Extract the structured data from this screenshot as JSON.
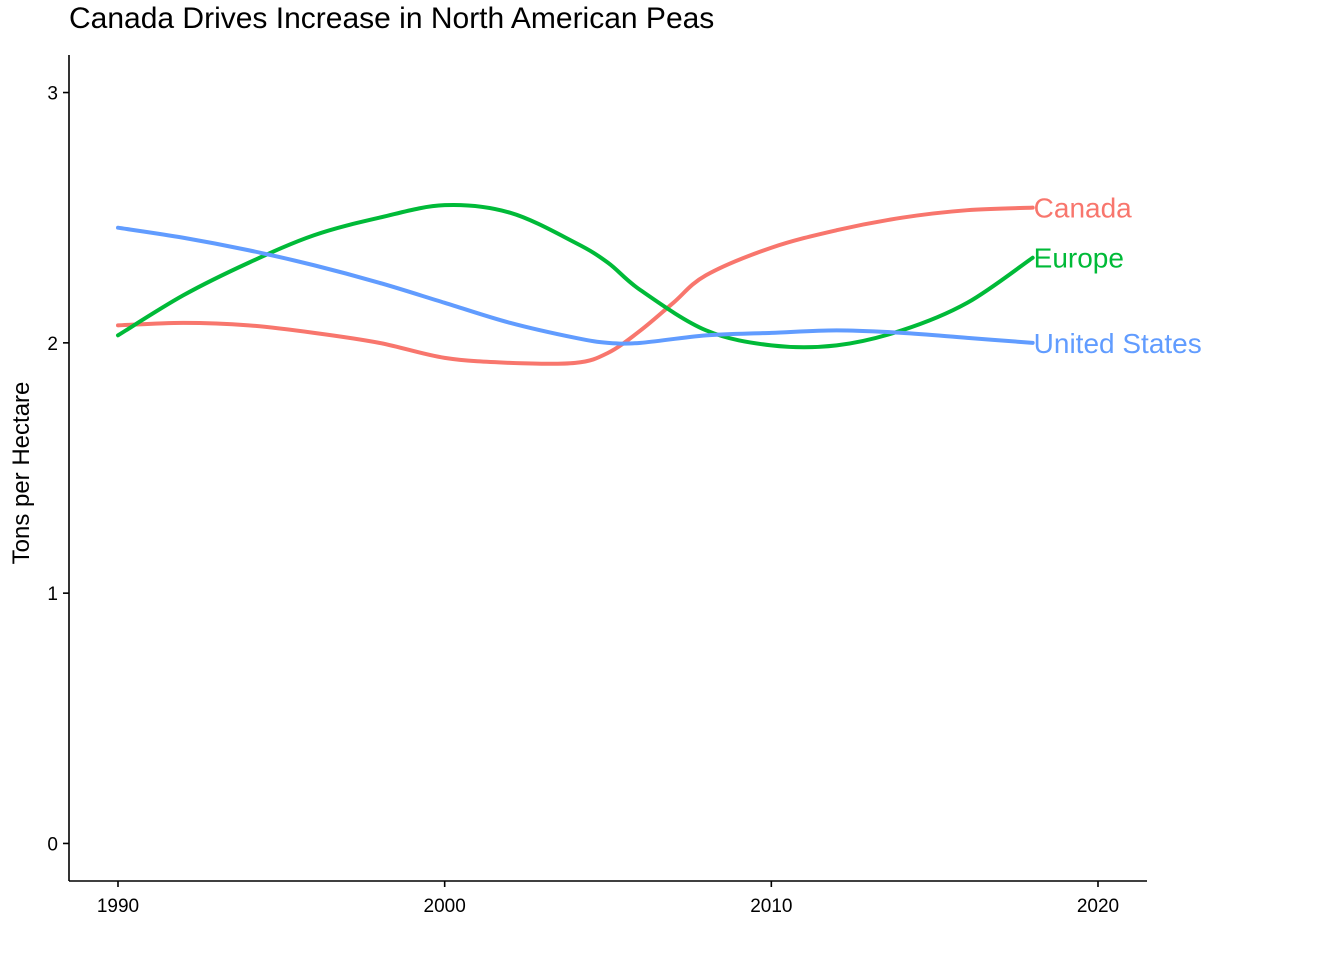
{
  "chart_data": {
    "type": "line",
    "title": "Canada Drives Increase in North American Peas",
    "xlabel": "",
    "ylabel": "Tons per Hectare",
    "xlim": [
      1988.5,
      2021.5
    ],
    "ylim": [
      -0.15,
      3.15
    ],
    "x_ticks": [
      1990,
      2000,
      2010,
      2020
    ],
    "y_ticks": [
      0,
      1,
      2,
      3
    ],
    "grid": false,
    "legend": "none (direct labels at line ends)",
    "series": [
      {
        "name": "Canada",
        "color": "#F8766D",
        "x": [
          1990,
          1992,
          1994,
          1996,
          1998,
          2000,
          2002,
          2004,
          2005,
          2006,
          2007,
          2008,
          2010,
          2012,
          2014,
          2016,
          2018
        ],
        "y": [
          2.07,
          2.08,
          2.07,
          2.04,
          2.0,
          1.94,
          1.92,
          1.92,
          1.96,
          2.05,
          2.16,
          2.27,
          2.38,
          2.45,
          2.5,
          2.53,
          2.54
        ]
      },
      {
        "name": "Europe",
        "color": "#00BA38",
        "x": [
          1990,
          1992,
          1994,
          1996,
          1998,
          2000,
          2002,
          2004,
          2005,
          2006,
          2008,
          2010,
          2012,
          2014,
          2016,
          2018
        ],
        "y": [
          2.03,
          2.19,
          2.32,
          2.43,
          2.5,
          2.55,
          2.52,
          2.4,
          2.32,
          2.21,
          2.05,
          1.99,
          1.99,
          2.05,
          2.16,
          2.34
        ]
      },
      {
        "name": "United States",
        "color": "#619CFF",
        "x": [
          1990,
          1992,
          1994,
          1996,
          1998,
          2000,
          2002,
          2004,
          2005,
          2006,
          2008,
          2010,
          2012,
          2014,
          2016,
          2018
        ],
        "y": [
          2.46,
          2.42,
          2.37,
          2.31,
          2.24,
          2.16,
          2.08,
          2.02,
          2.0,
          2.0,
          2.03,
          2.04,
          2.05,
          2.04,
          2.02,
          2.0
        ]
      }
    ]
  }
}
